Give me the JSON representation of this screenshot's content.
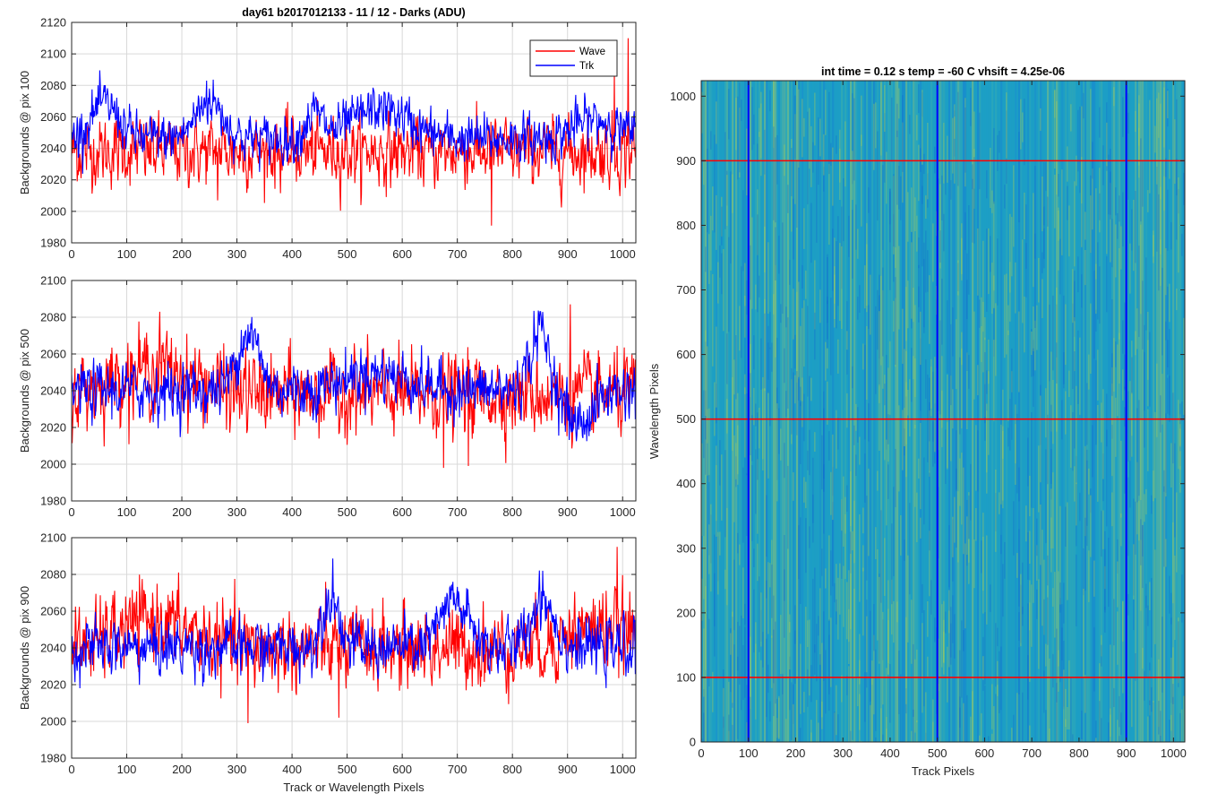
{
  "figure": {
    "main_title": "day61 b2017012133 - 11 / 12 - Darks (ADU)",
    "colors": {
      "wave": "#ff0000",
      "trk": "#0000ff",
      "grid": "#d9d9d9",
      "axis": "#262626"
    }
  },
  "chart_data": [
    {
      "type": "line",
      "title": "day61 b2017012133 - 11 / 12 - Darks (ADU)",
      "xlabel": "",
      "ylabel": "Backgrounds @ pix 100",
      "xlim": [
        0,
        1024
      ],
      "ylim": [
        1980,
        2120
      ],
      "xticks": [
        0,
        100,
        200,
        300,
        400,
        500,
        600,
        700,
        800,
        900,
        1000
      ],
      "yticks": [
        1980,
        2000,
        2020,
        2040,
        2060,
        2080,
        2100,
        2120
      ],
      "grid": true,
      "legend": {
        "placement": "top-right",
        "entries": [
          "Wave",
          "Trk"
        ]
      },
      "series": [
        {
          "name": "Wave",
          "color": "#ff0000",
          "mean": 2038,
          "noise": 10,
          "spikes": [
            [
              762,
              1991
            ],
            [
              1010,
              2110
            ],
            [
              985,
              2090
            ],
            [
              265,
              2007
            ]
          ],
          "bumps": []
        },
        {
          "name": "Trk",
          "color": "#0000ff",
          "mean": 2046,
          "noise": 7,
          "spikes": [
            [
              245,
              2083
            ]
          ],
          "bumps": [
            [
              60,
              2068,
              25
            ],
            [
              250,
              2070,
              25
            ],
            [
              440,
              2062,
              15
            ],
            [
              560,
              2065,
              50
            ],
            [
              950,
              2058,
              40
            ]
          ]
        }
      ]
    },
    {
      "type": "line",
      "title": "",
      "xlabel": "",
      "ylabel": "Backgrounds @ pix 500",
      "xlim": [
        0,
        1024
      ],
      "ylim": [
        1980,
        2100
      ],
      "xticks": [
        0,
        100,
        200,
        300,
        400,
        500,
        600,
        700,
        800,
        900,
        1000
      ],
      "yticks": [
        1980,
        2000,
        2020,
        2040,
        2060,
        2080,
        2100
      ],
      "grid": true,
      "series": [
        {
          "name": "Wave",
          "color": "#ff0000",
          "mean": 2038,
          "noise": 10,
          "spikes": [
            [
              905,
              2087
            ],
            [
              160,
              2083
            ],
            [
              675,
              1998
            ],
            [
              720,
              1999
            ]
          ],
          "bumps": [
            [
              150,
              2052,
              70
            ]
          ]
        },
        {
          "name": "Trk",
          "color": "#0000ff",
          "mean": 2040,
          "noise": 7,
          "spikes": [
            [
              850,
              2083
            ]
          ],
          "bumps": [
            [
              320,
              2072,
              20
            ],
            [
              850,
              2072,
              18
            ],
            [
              550,
              2050,
              60
            ]
          ],
          "dips": [
            [
              920,
              2022,
              25
            ]
          ]
        }
      ]
    },
    {
      "type": "line",
      "title": "",
      "xlabel": "Track or Wavelength Pixels",
      "ylabel": "Backgrounds @ pix 900",
      "xlim": [
        0,
        1024
      ],
      "ylim": [
        1980,
        2100
      ],
      "xticks": [
        0,
        100,
        200,
        300,
        400,
        500,
        600,
        700,
        800,
        900,
        1000
      ],
      "yticks": [
        1980,
        2000,
        2020,
        2040,
        2060,
        2080,
        2100
      ],
      "grid": true,
      "series": [
        {
          "name": "Wave",
          "color": "#ff0000",
          "mean": 2040,
          "noise": 10,
          "spikes": [
            [
              320,
              1999
            ],
            [
              990,
              2095
            ],
            [
              485,
              2002
            ]
          ],
          "bumps": [
            [
              150,
              2055,
              60
            ],
            [
              960,
              2052,
              60
            ]
          ]
        },
        {
          "name": "Trk",
          "color": "#0000ff",
          "mean": 2040,
          "noise": 7,
          "spikes": [
            [
              855,
              2082
            ]
          ],
          "bumps": [
            [
              470,
              2070,
              15
            ],
            [
              695,
              2065,
              25
            ],
            [
              855,
              2068,
              20
            ]
          ]
        }
      ]
    },
    {
      "type": "heatmap",
      "title": "int time = 0.12 s    temp = -60 C    vhsift = 4.25e-06",
      "xlabel": "Track Pixels",
      "ylabel": "Wavelength Pixels",
      "xlim": [
        0,
        1024
      ],
      "ylim": [
        0,
        1024
      ],
      "xticks": [
        0,
        100,
        200,
        300,
        400,
        500,
        600,
        700,
        800,
        900,
        1000
      ],
      "yticks": [
        0,
        100,
        200,
        300,
        400,
        500,
        600,
        700,
        800,
        900,
        1000
      ],
      "grid": false,
      "vertical_lines": {
        "color": "#0000ff",
        "x": [
          100,
          500,
          900
        ]
      },
      "horizontal_lines": {
        "color": "#ff0000",
        "y": [
          100,
          500,
          900
        ]
      }
    }
  ]
}
